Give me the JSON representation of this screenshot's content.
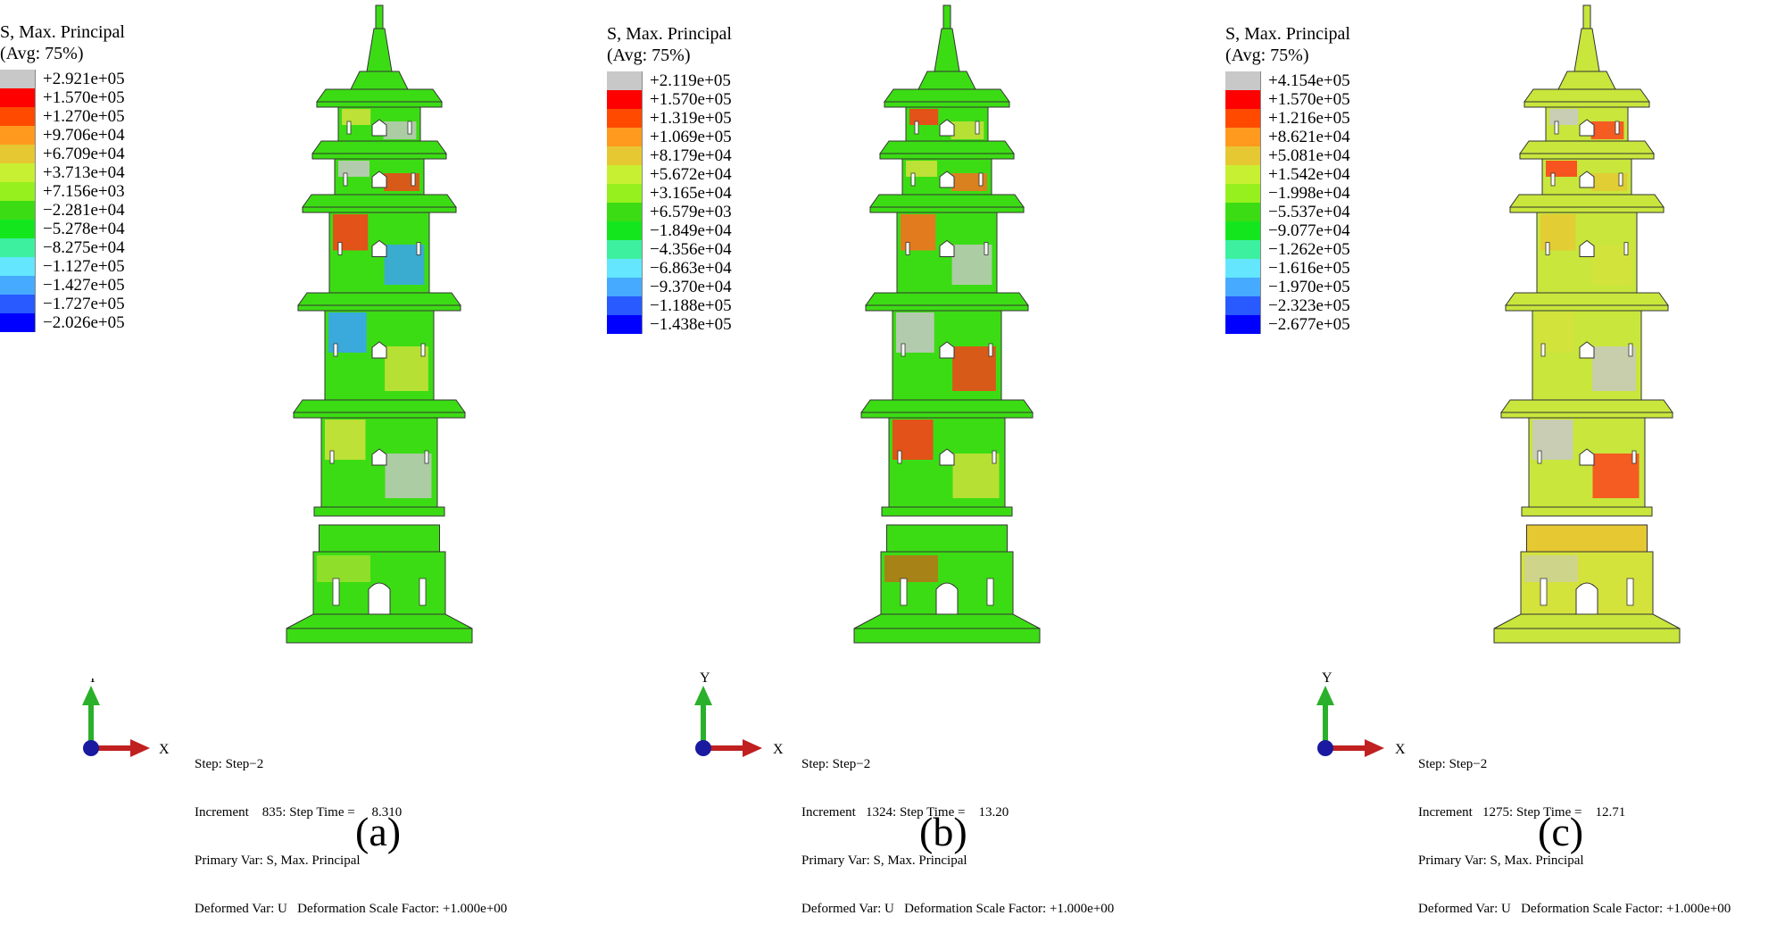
{
  "legend_title": "S, Max. Principal",
  "legend_avg": "(Avg: 75%)",
  "axis_y": "Y",
  "axis_x": "X",
  "panels": [
    {
      "caption": "(a)",
      "legend_values": [
        "+2.921e+05",
        "+1.570e+05",
        "+1.270e+05",
        "+9.706e+04",
        "+6.709e+04",
        "+3.713e+04",
        "+7.156e+03",
        "−2.281e+04",
        "−5.278e+04",
        "−8.275e+04",
        "−1.127e+05",
        "−1.427e+05",
        "−1.727e+05",
        "−2.026e+05"
      ],
      "step": "Step: Step−2",
      "increment": "Increment    835: Step Time =     8.310",
      "primary": "Primary Var: S, Max. Principal",
      "deformed": "Deformed Var: U   Deformation Scale Factor: +1.000e+00"
    },
    {
      "caption": "(b)",
      "legend_values": [
        "+2.119e+05",
        "+1.570e+05",
        "+1.319e+05",
        "+1.069e+05",
        "+8.179e+04",
        "+5.672e+04",
        "+3.165e+04",
        "+6.579e+03",
        "−1.849e+04",
        "−4.356e+04",
        "−6.863e+04",
        "−9.370e+04",
        "−1.188e+05",
        "−1.438e+05"
      ],
      "step": "Step: Step−2",
      "increment": "Increment   1324: Step Time =    13.20",
      "primary": "Primary Var: S, Max. Principal",
      "deformed": "Deformed Var: U   Deformation Scale Factor: +1.000e+00"
    },
    {
      "caption": "(c)",
      "legend_values": [
        "+4.154e+05",
        "+1.570e+05",
        "+1.216e+05",
        "+8.621e+04",
        "+5.081e+04",
        "+1.542e+04",
        "−1.998e+04",
        "−5.537e+04",
        "−9.077e+04",
        "−1.262e+05",
        "−1.616e+05",
        "−1.970e+05",
        "−2.323e+05",
        "−2.677e+05"
      ],
      "step": "Step: Step−2",
      "increment": "Increment   1275: Step Time =    12.71",
      "primary": "Primary Var: S, Max. Principal",
      "deformed": "Deformed Var: U   Deformation Scale Factor: +1.000e+00"
    }
  ],
  "colors": {
    "scale": [
      "#c8c8c8",
      "#ff0000",
      "#ff4a00",
      "#ff9a1e",
      "#e6c832",
      "#c8f032",
      "#96f01e",
      "#3cdc14",
      "#14e61e",
      "#3cf0a0",
      "#64e6ff",
      "#46aaff",
      "#285aff",
      "#0000ff"
    ],
    "tower_base": "#3cdc14",
    "tower_a_hot": "#e6d23c",
    "tower_c_hot": "#e6e650",
    "axis_y": "#2ab02a",
    "axis_x": "#c02020",
    "axis_origin": "#1a1aa0"
  }
}
